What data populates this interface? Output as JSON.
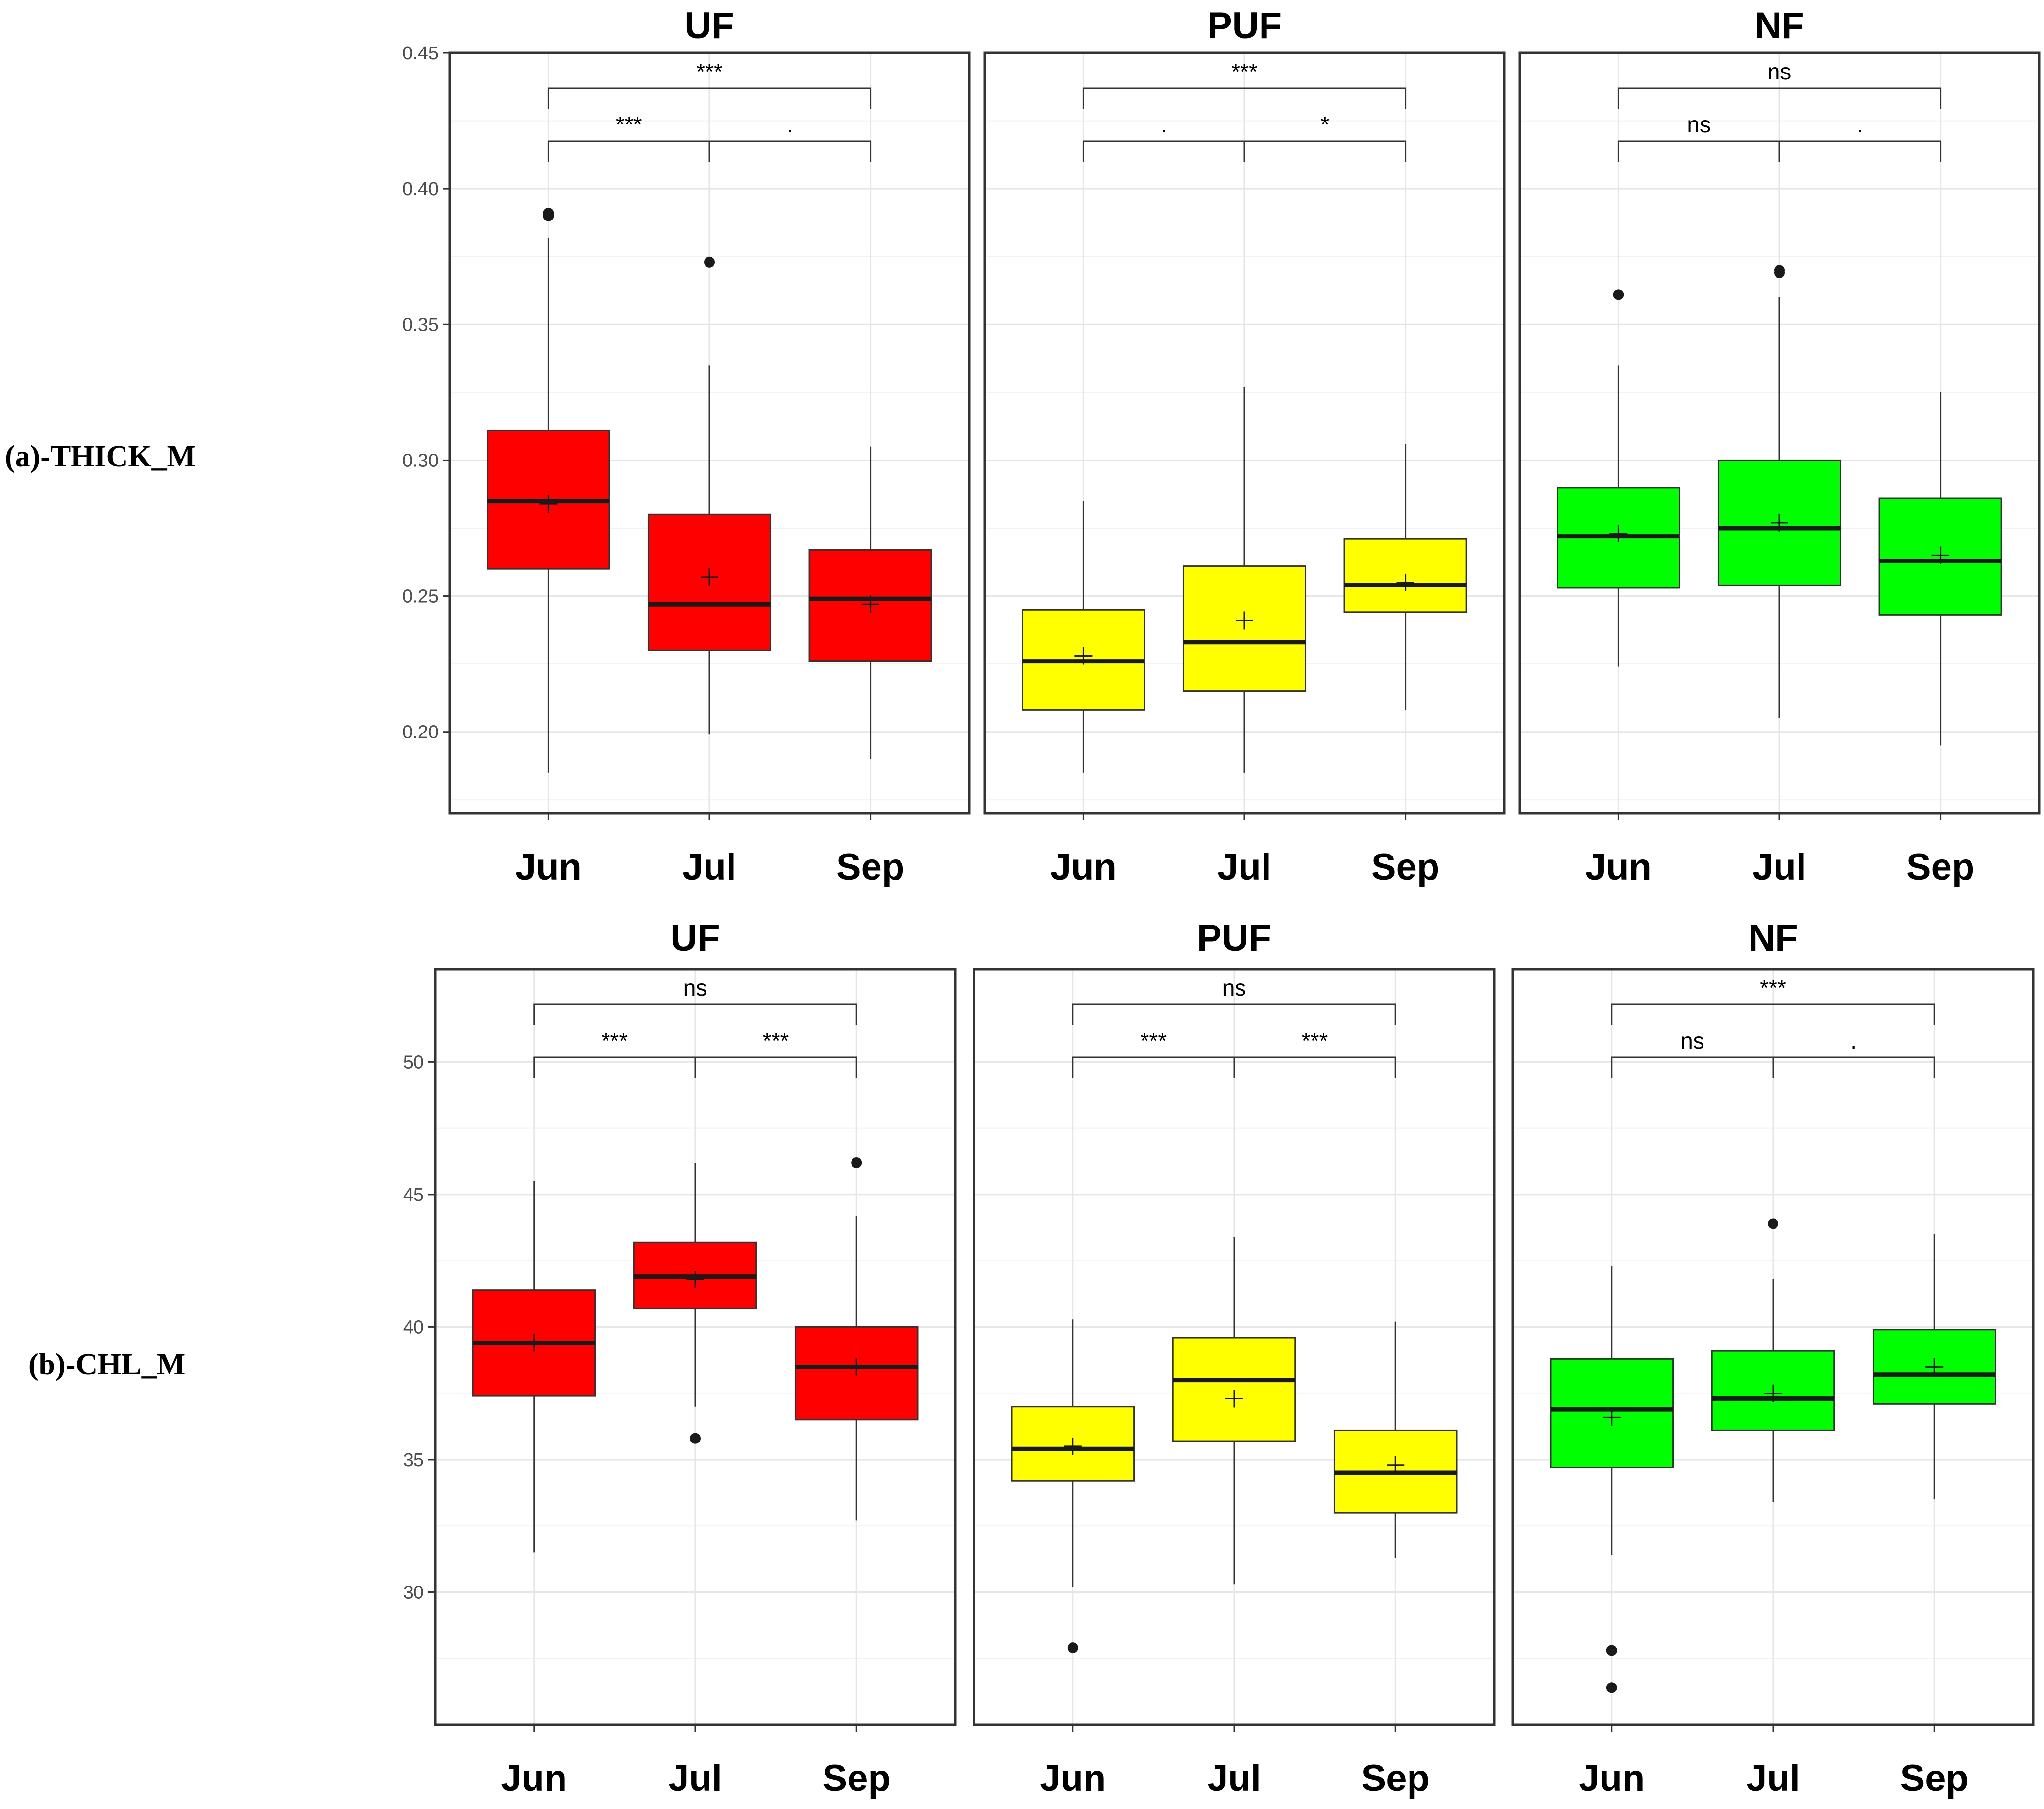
{
  "chart_data": [
    {
      "type": "box",
      "row_label": "(a)-THICK_M",
      "ylim": [
        0.17,
        0.45
      ],
      "yticks": [
        0.2,
        0.25,
        0.3,
        0.35,
        0.4,
        0.45
      ],
      "ytick_labels": [
        "0.20",
        "0.25",
        "0.30",
        "0.35",
        "0.40",
        "0.45"
      ],
      "categories": [
        "Jun",
        "Jul",
        "Sep"
      ],
      "grid": true,
      "panels": [
        {
          "title": "UF",
          "fill": "#ff0000",
          "boxes": [
            {
              "category": "Jun",
              "whislo": 0.185,
              "q1": 0.26,
              "median": 0.285,
              "q3": 0.311,
              "whishi": 0.382,
              "mean": 0.284,
              "outliers": [
                0.39,
                0.391
              ]
            },
            {
              "category": "Jul",
              "whislo": 0.199,
              "q1": 0.23,
              "median": 0.247,
              "q3": 0.28,
              "whishi": 0.335,
              "mean": 0.257,
              "outliers": [
                0.373
              ]
            },
            {
              "category": "Sep",
              "whislo": 0.19,
              "q1": 0.226,
              "median": 0.249,
              "q3": 0.267,
              "whishi": 0.305,
              "mean": 0.247,
              "outliers": []
            }
          ],
          "comparisons": [
            {
              "from": 0,
              "to": 2,
              "label": "***"
            },
            {
              "from": 0,
              "to": 1,
              "label": "***"
            },
            {
              "from": 1,
              "to": 2,
              "label": "."
            }
          ]
        },
        {
          "title": "PUF",
          "fill": "#ffff00",
          "boxes": [
            {
              "category": "Jun",
              "whislo": 0.185,
              "q1": 0.208,
              "median": 0.226,
              "q3": 0.245,
              "whishi": 0.285,
              "mean": 0.228,
              "outliers": []
            },
            {
              "category": "Jul",
              "whislo": 0.185,
              "q1": 0.215,
              "median": 0.233,
              "q3": 0.261,
              "whishi": 0.327,
              "mean": 0.241,
              "outliers": []
            },
            {
              "category": "Sep",
              "whislo": 0.208,
              "q1": 0.244,
              "median": 0.254,
              "q3": 0.271,
              "whishi": 0.306,
              "mean": 0.255,
              "outliers": []
            }
          ],
          "comparisons": [
            {
              "from": 0,
              "to": 2,
              "label": "***"
            },
            {
              "from": 0,
              "to": 1,
              "label": "."
            },
            {
              "from": 1,
              "to": 2,
              "label": "*"
            }
          ]
        },
        {
          "title": "NF",
          "fill": "#00ff00",
          "boxes": [
            {
              "category": "Jun",
              "whislo": 0.224,
              "q1": 0.253,
              "median": 0.272,
              "q3": 0.29,
              "whishi": 0.335,
              "mean": 0.273,
              "outliers": [
                0.361
              ]
            },
            {
              "category": "Jul",
              "whislo": 0.205,
              "q1": 0.254,
              "median": 0.275,
              "q3": 0.3,
              "whishi": 0.36,
              "mean": 0.277,
              "outliers": [
                0.369,
                0.37
              ]
            },
            {
              "category": "Sep",
              "whislo": 0.195,
              "q1": 0.243,
              "median": 0.263,
              "q3": 0.286,
              "whishi": 0.325,
              "mean": 0.265,
              "outliers": []
            }
          ],
          "comparisons": [
            {
              "from": 0,
              "to": 2,
              "label": "ns"
            },
            {
              "from": 0,
              "to": 1,
              "label": "ns"
            },
            {
              "from": 1,
              "to": 2,
              "label": "."
            }
          ]
        }
      ]
    },
    {
      "type": "box",
      "row_label": "(b)-CHL_M",
      "ylim": [
        25.0,
        53.5
      ],
      "yticks": [
        30,
        35,
        40,
        45,
        50
      ],
      "ytick_labels": [
        "30",
        "35",
        "40",
        "45",
        "50"
      ],
      "categories": [
        "Jun",
        "Jul",
        "Sep"
      ],
      "grid": true,
      "panels": [
        {
          "title": "UF",
          "fill": "#ff0000",
          "boxes": [
            {
              "category": "Jun",
              "whislo": 31.5,
              "q1": 37.4,
              "median": 39.4,
              "q3": 41.4,
              "whishi": 45.5,
              "mean": 39.4,
              "outliers": []
            },
            {
              "category": "Jul",
              "whislo": 37.0,
              "q1": 40.7,
              "median": 41.9,
              "q3": 43.2,
              "whishi": 46.2,
              "mean": 41.8,
              "outliers": [
                35.8
              ]
            },
            {
              "category": "Sep",
              "whislo": 32.7,
              "q1": 36.5,
              "median": 38.5,
              "q3": 40.0,
              "whishi": 44.2,
              "mean": 38.5,
              "outliers": [
                46.2
              ]
            }
          ],
          "comparisons": [
            {
              "from": 0,
              "to": 2,
              "label": "ns"
            },
            {
              "from": 0,
              "to": 1,
              "label": "***"
            },
            {
              "from": 1,
              "to": 2,
              "label": "***"
            }
          ]
        },
        {
          "title": "PUF",
          "fill": "#ffff00",
          "boxes": [
            {
              "category": "Jun",
              "whislo": 30.2,
              "q1": 34.2,
              "median": 35.4,
              "q3": 37.0,
              "whishi": 40.3,
              "mean": 35.5,
              "outliers": [
                27.9
              ]
            },
            {
              "category": "Jul",
              "whislo": 30.3,
              "q1": 35.7,
              "median": 38.0,
              "q3": 39.6,
              "whishi": 43.4,
              "mean": 37.3,
              "outliers": []
            },
            {
              "category": "Sep",
              "whislo": 31.3,
              "q1": 33.0,
              "median": 34.5,
              "q3": 36.1,
              "whishi": 40.2,
              "mean": 34.8,
              "outliers": []
            }
          ],
          "comparisons": [
            {
              "from": 0,
              "to": 2,
              "label": "ns"
            },
            {
              "from": 0,
              "to": 1,
              "label": "***"
            },
            {
              "from": 1,
              "to": 2,
              "label": "***"
            }
          ]
        },
        {
          "title": "NF",
          "fill": "#00ff00",
          "boxes": [
            {
              "category": "Jun",
              "whislo": 31.4,
              "q1": 34.7,
              "median": 36.9,
              "q3": 38.8,
              "whishi": 42.3,
              "mean": 36.6,
              "outliers": [
                27.8,
                26.4
              ]
            },
            {
              "category": "Jul",
              "whislo": 33.4,
              "q1": 36.1,
              "median": 37.3,
              "q3": 39.1,
              "whishi": 41.8,
              "mean": 37.5,
              "outliers": [
                43.9
              ]
            },
            {
              "category": "Sep",
              "whislo": 33.5,
              "q1": 37.1,
              "median": 38.2,
              "q3": 39.9,
              "whishi": 43.5,
              "mean": 38.5,
              "outliers": []
            }
          ],
          "comparisons": [
            {
              "from": 0,
              "to": 2,
              "label": "***"
            },
            {
              "from": 0,
              "to": 1,
              "label": "ns"
            },
            {
              "from": 1,
              "to": 2,
              "label": "."
            }
          ]
        }
      ]
    }
  ]
}
